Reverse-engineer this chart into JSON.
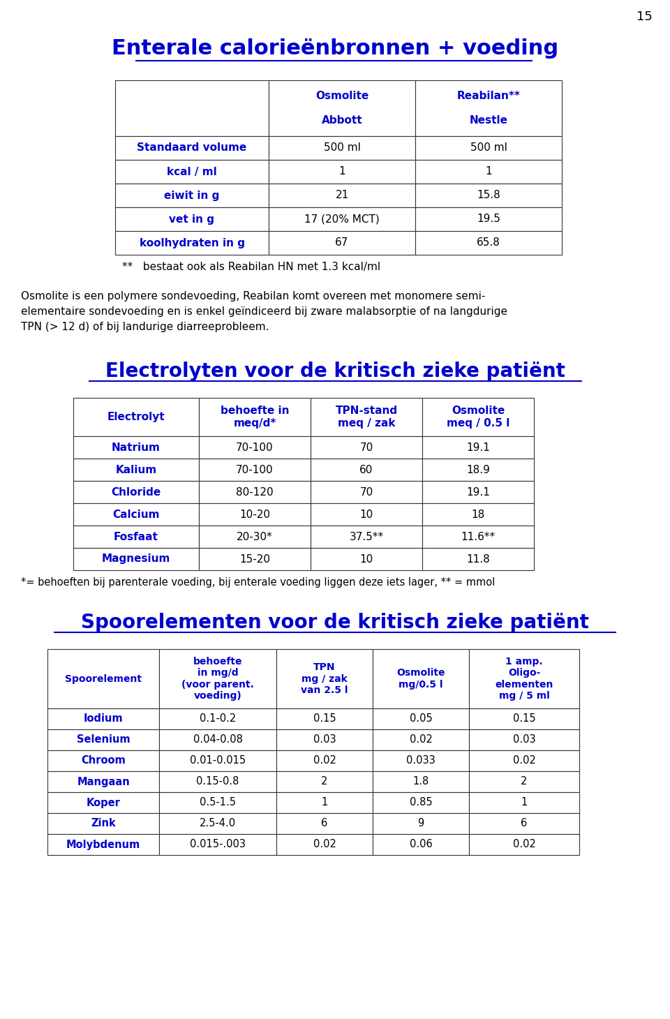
{
  "page_number": "15",
  "title1": "Enterale calorieënbronnen + voeding",
  "blue": "#0000CC",
  "black": "#000000",
  "table1_header": [
    "",
    "Osmolite\n\nAbbott",
    "Reabilan**\n\nNestle"
  ],
  "table1_rows": [
    [
      "Standaard volume",
      "500 ml",
      "500 ml"
    ],
    [
      "kcal / ml",
      "1",
      "1"
    ],
    [
      "eiwit in g",
      "21",
      "15.8"
    ],
    [
      "vet in g",
      "17 (20% MCT)",
      "19.5"
    ],
    [
      "koolhydraten in g",
      "67",
      "65.8"
    ]
  ],
  "footnote1": "**   bestaat ook als Reabilan HN met 1.3 kcal/ml",
  "body_text": "Osmolite is een polymere sondevoeding, Reabilan komt overeen met monomere semi-\nelementaire sondevoeding en is enkel geïndiceerd bij zware malabsorptie of na langdurige\nTPN (> 12 d) of bij landurige diarreeprobleem.",
  "title2": "Electrolyten voor de kritisch zieke patiënt",
  "table2_header": [
    "Electrolyt",
    "behoefte in\nmeq/d*",
    "TPN-stand\nmeq / zak",
    "Osmolite\nmeq / 0.5 l"
  ],
  "table2_rows": [
    [
      "Natrium",
      "70-100",
      "70",
      "19.1"
    ],
    [
      "Kalium",
      "70-100",
      "60",
      "18.9"
    ],
    [
      "Chloride",
      "80-120",
      "70",
      "19.1"
    ],
    [
      "Calcium",
      "10-20",
      "10",
      "18"
    ],
    [
      "Fosfaat",
      "20-30*",
      "37.5**",
      "11.6**"
    ],
    [
      "Magnesium",
      "15-20",
      "10",
      "11.8"
    ]
  ],
  "footnote2": "*= behoeften bij parenterale voeding, bij enterale voeding liggen deze iets lager, ** = mmol",
  "title3": "Spoorelementen voor de kritisch zieke patiënt",
  "table3_header": [
    "Spoorelement",
    "behoefte\nin mg/d\n(voor parent.\nvoeding)",
    "TPN\nmg / zak\nvan 2.5 l",
    "Osmolite\nmg/0.5 l",
    "1 amp.\nOligo-\nelementen\nmg / 5 ml"
  ],
  "table3_rows": [
    [
      "Iodium",
      "0.1-0.2",
      "0.15",
      "0.05",
      "0.15"
    ],
    [
      "Selenium",
      "0.04-0.08",
      "0.03",
      "0.02",
      "0.03"
    ],
    [
      "Chroom",
      "0.01-0.015",
      "0.02",
      "0.033",
      "0.02"
    ],
    [
      "Mangaan",
      "0.15-0.8",
      "2",
      "1.8",
      "2"
    ],
    [
      "Koper",
      "0.5-1.5",
      "1",
      "0.85",
      "1"
    ],
    [
      "Zink",
      "2.5-4.0",
      "6",
      "9",
      "6"
    ],
    [
      "Molybdenum",
      "0.015-.003",
      "0.02",
      "0.06",
      "0.02"
    ]
  ]
}
